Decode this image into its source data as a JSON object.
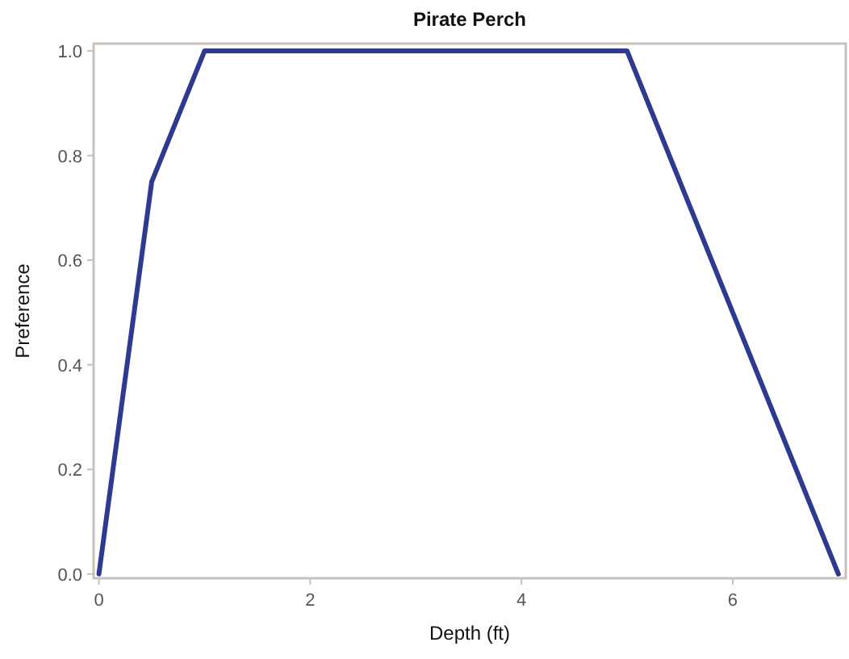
{
  "chart_data": {
    "type": "line",
    "title": "Pirate Perch",
    "xlabel": "Depth (ft)",
    "ylabel": "Preference",
    "x": [
      0,
      0.5,
      1,
      5,
      7
    ],
    "series": [
      {
        "color": "#2e3a8f",
        "values": [
          0,
          0.75,
          1,
          1,
          0
        ]
      }
    ],
    "xlim": [
      -0.05,
      7.07
    ],
    "xticks": [
      0,
      2,
      4,
      6
    ],
    "ylim": [
      -0.008,
      1.014
    ],
    "yticks": [
      {
        "value": 0,
        "label": "0.0"
      },
      {
        "value": 0.2,
        "label": "0.2"
      },
      {
        "value": 0.4,
        "label": "0.4"
      },
      {
        "value": 0.6,
        "label": "0.6"
      },
      {
        "value": 0.8,
        "label": "0.8"
      },
      {
        "value": 1,
        "label": "1.0"
      }
    ],
    "grid": false,
    "marker": "none",
    "line_style": "solid"
  }
}
